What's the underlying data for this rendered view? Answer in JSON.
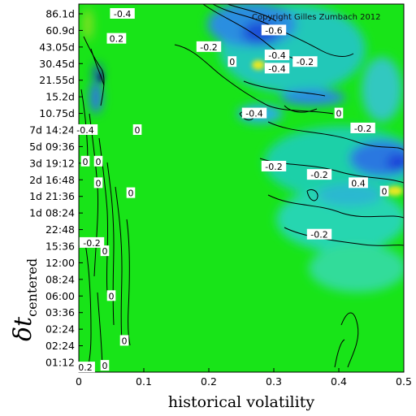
{
  "chart_data": {
    "type": "heatmap",
    "title": "",
    "xlabel": "historical volatility",
    "ylabel_main": "δt",
    "ylabel_sub": "centered",
    "copyright": "Copyright Gilles Zumbach 2012",
    "xlim": [
      0,
      0.5
    ],
    "x_ticks": [
      {
        "value": 0,
        "label": "0"
      },
      {
        "value": 0.1,
        "label": "0.1"
      },
      {
        "value": 0.2,
        "label": "0.2"
      },
      {
        "value": 0.3,
        "label": "0.3"
      },
      {
        "value": 0.4,
        "label": "0.4"
      },
      {
        "value": 0.5,
        "label": "0.5"
      }
    ],
    "y_ticks_top_to_bottom": [
      "86.1d",
      "60.9d",
      "43.05d",
      "30.45d",
      "21.55d",
      "15.2d",
      "10.75d",
      "7d 14:24",
      "5d 09:36",
      "3d 19:12",
      "2d 16:48",
      "1d 21:36",
      "1d 08:24",
      "22:48",
      "15:36",
      "12:00",
      "08:24",
      "06:00",
      "03:36",
      "02:24",
      "02:24",
      "01:12"
    ],
    "colorscale": {
      "negative": "#1f3fd8",
      "neutral": "#18e418",
      "positive": "#e8e820"
    },
    "contour_labels": [
      {
        "text": "-0.4",
        "x": 0.067,
        "y_index": 0
      },
      {
        "text": "0.2",
        "x": 0.058,
        "y_index": 1.5
      },
      {
        "text": "-0.2",
        "x": 0.2,
        "y_index": 2.0
      },
      {
        "text": "0",
        "x": 0.236,
        "y_index": 2.9
      },
      {
        "text": "-0.6",
        "x": 0.3,
        "y_index": 1.0
      },
      {
        "text": "-0.4",
        "x": 0.305,
        "y_index": 2.5
      },
      {
        "text": "-0.4",
        "x": 0.305,
        "y_index": 3.3
      },
      {
        "text": "-0.2",
        "x": 0.348,
        "y_index": 2.9
      },
      {
        "text": "-0.4",
        "x": 0.27,
        "y_index": 6.0
      },
      {
        "text": "0",
        "x": 0.4,
        "y_index": 6.0
      },
      {
        "text": "-0.2",
        "x": 0.437,
        "y_index": 6.9
      },
      {
        "text": "-0.4",
        "x": 0.01,
        "y_index": 7.0
      },
      {
        "text": "0",
        "x": 0.09,
        "y_index": 7.0
      },
      {
        "text": "0",
        "x": 0.0,
        "y_index": 8.9
      },
      {
        "text": "0",
        "x": 0.03,
        "y_index": 8.9
      },
      {
        "text": "-0.2",
        "x": 0.3,
        "y_index": 9.2
      },
      {
        "text": "-0.2",
        "x": 0.37,
        "y_index": 9.7
      },
      {
        "text": "0.4",
        "x": 0.43,
        "y_index": 10.2
      },
      {
        "text": "0",
        "x": 0.47,
        "y_index": 10.7
      },
      {
        "text": "0",
        "x": 0.03,
        "y_index": 10.2
      },
      {
        "text": "0",
        "x": 0.08,
        "y_index": 10.8
      },
      {
        "text": "-0.2",
        "x": 0.02,
        "y_index": 13.8
      },
      {
        "text": "0",
        "x": 0.04,
        "y_index": 14.3
      },
      {
        "text": "-0.2",
        "x": 0.37,
        "y_index": 13.3
      },
      {
        "text": "0",
        "x": 0.05,
        "y_index": 17.0
      },
      {
        "text": "0",
        "x": 0.07,
        "y_index": 19.7
      },
      {
        "text": "0",
        "x": 0.04,
        "y_index": 21.2
      },
      {
        "text": "0.2",
        "x": 0.0,
        "y_index": 21.3
      }
    ]
  }
}
